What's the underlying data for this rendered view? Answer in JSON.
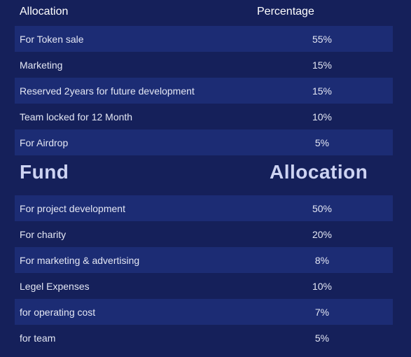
{
  "header": {
    "allocation": "Allocation",
    "percentage": "Percentage"
  },
  "token_allocation": [
    {
      "label": "For Token sale",
      "pct": "55%"
    },
    {
      "label": "Marketing",
      "pct": "15%"
    },
    {
      "label": "Reserved 2years for future development",
      "pct": "15%"
    },
    {
      "label": "Team locked for 12 Month",
      "pct": "10%"
    },
    {
      "label": "For Airdrop",
      "pct": "5%"
    }
  ],
  "fund_heading": {
    "left": "Fund",
    "right": "Allocation"
  },
  "fund_allocation": [
    {
      "label": "For project development",
      "pct": "50%"
    },
    {
      "label": "For charity",
      "pct": "20%"
    },
    {
      "label": "For marketing & advertising",
      "pct": "8%"
    },
    {
      "label": "Legel Expenses",
      "pct": "10%"
    },
    {
      "label": "for operating cost",
      "pct": "7%"
    },
    {
      "label": "for team",
      "pct": "5%"
    }
  ],
  "colors": {
    "background": "#15205a",
    "row_shaded": "#1c2c74",
    "heading_text": "#cdd3f2"
  }
}
